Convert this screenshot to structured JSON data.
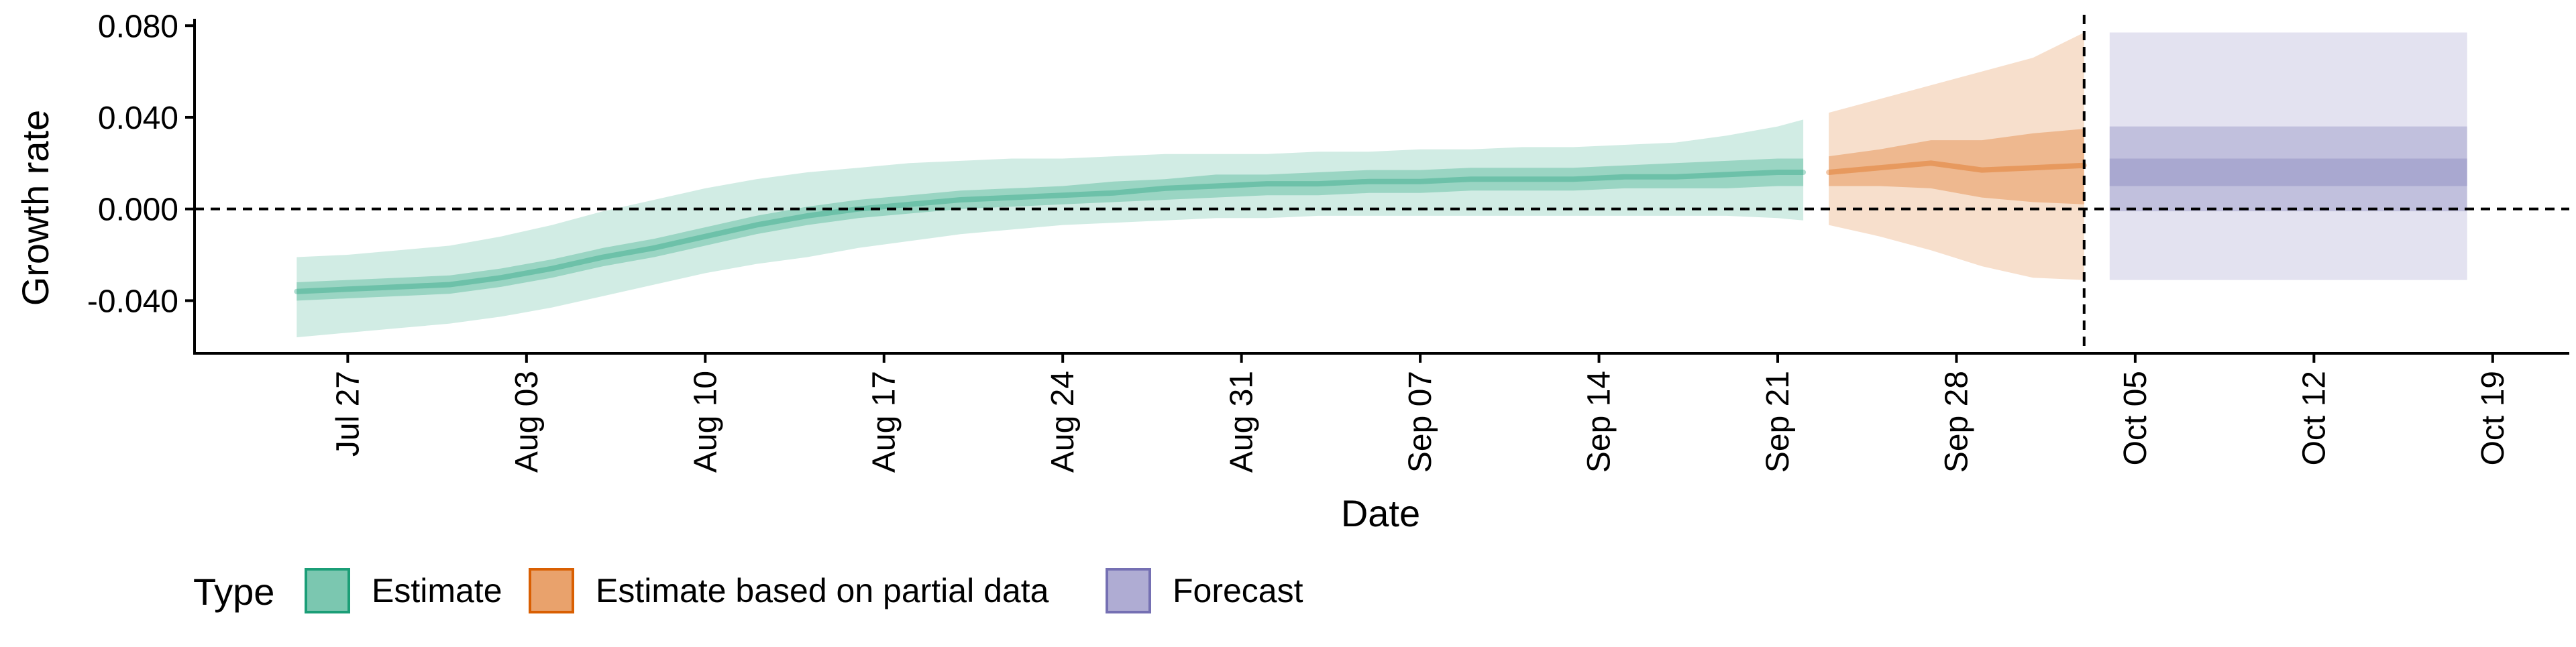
{
  "chart_data": {
    "type": "area",
    "title": "",
    "xlabel": "Date",
    "ylabel": "Growth rate",
    "x_axis": {
      "type": "date",
      "range": [
        "2020-07-21",
        "2020-10-22"
      ],
      "ticks": [
        {
          "date": "2020-07-27",
          "label": "Jul 27"
        },
        {
          "date": "2020-08-03",
          "label": "Aug 03"
        },
        {
          "date": "2020-08-10",
          "label": "Aug 10"
        },
        {
          "date": "2020-08-17",
          "label": "Aug 17"
        },
        {
          "date": "2020-08-24",
          "label": "Aug 24"
        },
        {
          "date": "2020-08-31",
          "label": "Aug 31"
        },
        {
          "date": "2020-09-07",
          "label": "Sep 07"
        },
        {
          "date": "2020-09-14",
          "label": "Sep 14"
        },
        {
          "date": "2020-09-21",
          "label": "Sep 21"
        },
        {
          "date": "2020-09-28",
          "label": "Sep 28"
        },
        {
          "date": "2020-10-05",
          "label": "Oct 05"
        },
        {
          "date": "2020-10-12",
          "label": "Oct 12"
        },
        {
          "date": "2020-10-19",
          "label": "Oct 19"
        }
      ]
    },
    "y_axis": {
      "range": [
        -0.063,
        0.083
      ],
      "ticks": [
        {
          "value": -0.04,
          "label": "-0.040"
        },
        {
          "value": 0.0,
          "label": "0.000"
        },
        {
          "value": 0.04,
          "label": "0.040"
        },
        {
          "value": 0.08,
          "label": "0.080"
        }
      ]
    },
    "reference_lines": [
      {
        "orientation": "horizontal",
        "value": 0.0,
        "style": "dashed"
      },
      {
        "orientation": "vertical",
        "date": "2020-10-03",
        "style": "dashed"
      }
    ],
    "grid": false,
    "legend": {
      "position": "bottom-left",
      "title": "Type",
      "entries": [
        {
          "label": "Estimate",
          "color": "#1b9e77"
        },
        {
          "label": "Estimate based on partial data",
          "color": "#d95f02"
        },
        {
          "label": "Forecast",
          "color": "#7570b3"
        }
      ]
    },
    "series": [
      {
        "name": "Estimate",
        "color": "#1b9e77",
        "x": [
          "2020-07-25",
          "2020-07-27",
          "2020-07-29",
          "2020-07-31",
          "2020-08-02",
          "2020-08-04",
          "2020-08-06",
          "2020-08-08",
          "2020-08-10",
          "2020-08-12",
          "2020-08-14",
          "2020-08-16",
          "2020-08-18",
          "2020-08-20",
          "2020-08-22",
          "2020-08-24",
          "2020-08-26",
          "2020-08-28",
          "2020-08-30",
          "2020-09-01",
          "2020-09-03",
          "2020-09-05",
          "2020-09-07",
          "2020-09-09",
          "2020-09-11",
          "2020-09-13",
          "2020-09-15",
          "2020-09-17",
          "2020-09-19",
          "2020-09-21",
          "2020-09-22"
        ],
        "median": [
          -0.036,
          -0.035,
          -0.034,
          -0.033,
          -0.03,
          -0.026,
          -0.021,
          -0.017,
          -0.012,
          -0.007,
          -0.003,
          0.0,
          0.002,
          0.004,
          0.005,
          0.006,
          0.007,
          0.009,
          0.01,
          0.011,
          0.011,
          0.012,
          0.012,
          0.013,
          0.013,
          0.013,
          0.014,
          0.014,
          0.015,
          0.016,
          0.016
        ],
        "lower_50": [
          -0.04,
          -0.039,
          -0.038,
          -0.037,
          -0.034,
          -0.03,
          -0.025,
          -0.021,
          -0.016,
          -0.011,
          -0.007,
          -0.004,
          -0.002,
          0.0,
          0.001,
          0.002,
          0.003,
          0.004,
          0.005,
          0.006,
          0.006,
          0.007,
          0.007,
          0.008,
          0.008,
          0.008,
          0.009,
          0.009,
          0.009,
          0.01,
          0.01
        ],
        "upper_50": [
          -0.032,
          -0.031,
          -0.03,
          -0.029,
          -0.026,
          -0.022,
          -0.017,
          -0.013,
          -0.008,
          -0.003,
          0.001,
          0.004,
          0.006,
          0.008,
          0.009,
          0.01,
          0.012,
          0.013,
          0.015,
          0.015,
          0.016,
          0.017,
          0.017,
          0.018,
          0.018,
          0.018,
          0.019,
          0.02,
          0.021,
          0.022,
          0.022
        ],
        "lower_90": [
          -0.056,
          -0.054,
          -0.052,
          -0.05,
          -0.047,
          -0.043,
          -0.038,
          -0.033,
          -0.028,
          -0.024,
          -0.021,
          -0.017,
          -0.014,
          -0.011,
          -0.009,
          -0.007,
          -0.006,
          -0.005,
          -0.004,
          -0.004,
          -0.003,
          -0.003,
          -0.003,
          -0.003,
          -0.003,
          -0.003,
          -0.003,
          -0.003,
          -0.003,
          -0.004,
          -0.005
        ],
        "upper_90": [
          -0.021,
          -0.02,
          -0.018,
          -0.016,
          -0.012,
          -0.007,
          -0.001,
          0.004,
          0.009,
          0.013,
          0.016,
          0.018,
          0.02,
          0.021,
          0.022,
          0.022,
          0.023,
          0.024,
          0.024,
          0.024,
          0.025,
          0.025,
          0.026,
          0.026,
          0.027,
          0.027,
          0.028,
          0.029,
          0.032,
          0.036,
          0.039
        ]
      },
      {
        "name": "Estimate based on partial data",
        "color": "#d95f02",
        "x": [
          "2020-09-23",
          "2020-09-25",
          "2020-09-27",
          "2020-09-29",
          "2020-10-01",
          "2020-10-03"
        ],
        "median": [
          0.016,
          0.018,
          0.02,
          0.017,
          0.018,
          0.019
        ],
        "lower_50": [
          0.01,
          0.01,
          0.009,
          0.005,
          0.003,
          0.002
        ],
        "upper_50": [
          0.023,
          0.026,
          0.03,
          0.03,
          0.033,
          0.035
        ],
        "lower_90": [
          -0.007,
          -0.012,
          -0.018,
          -0.025,
          -0.03,
          -0.031
        ],
        "upper_90": [
          0.042,
          0.048,
          0.054,
          0.06,
          0.066,
          0.077
        ]
      },
      {
        "name": "Forecast",
        "color": "#7570b3",
        "x": [
          "2020-10-04",
          "2020-10-18"
        ],
        "lower_25": [
          0.01,
          0.01
        ],
        "upper_25": [
          0.022,
          0.022
        ],
        "lower_50": [
          -0.001,
          -0.001
        ],
        "upper_50": [
          0.036,
          0.036
        ],
        "lower_90": [
          -0.031,
          -0.031
        ],
        "upper_90": [
          0.077,
          0.077
        ]
      }
    ]
  }
}
